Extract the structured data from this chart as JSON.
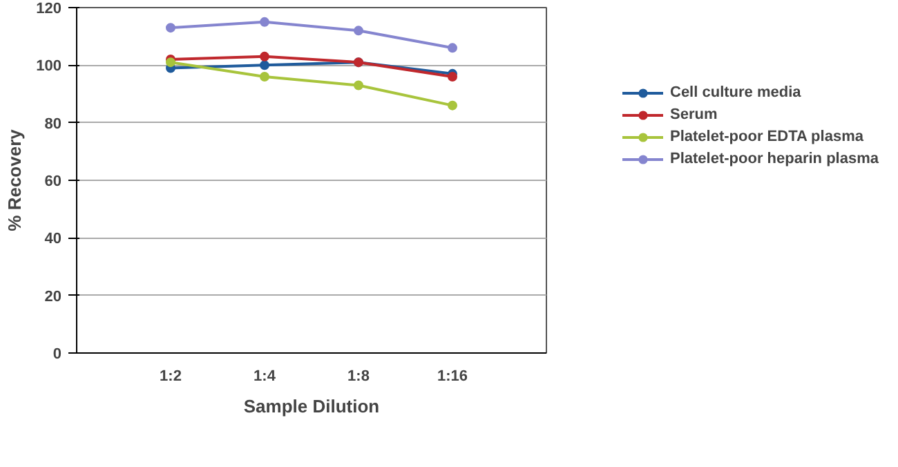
{
  "chart_data": {
    "type": "line",
    "xlabel": "Sample Dilution",
    "ylabel": "% Recovery",
    "categories": [
      "1:2",
      "1:4",
      "1:8",
      "1:16"
    ],
    "series": [
      {
        "name": "Cell culture media",
        "color": "#1f5b9c",
        "values": [
          99,
          100,
          101,
          97
        ]
      },
      {
        "name": "Serum",
        "color": "#c0282d",
        "values": [
          102,
          103,
          101,
          96
        ]
      },
      {
        "name": "Platelet-poor EDTA plasma",
        "color": "#a8c43c",
        "values": [
          101,
          96,
          93,
          86
        ]
      },
      {
        "name": "Platelet-poor heparin plasma",
        "color": "#8585cf",
        "values": [
          113,
          115,
          112,
          106
        ]
      }
    ],
    "ylim": [
      0,
      120
    ],
    "yticks": [
      0,
      20,
      40,
      60,
      80,
      100,
      120
    ],
    "grid": "y",
    "legend": "right",
    "marker": "circle",
    "line_style": "solid"
  }
}
